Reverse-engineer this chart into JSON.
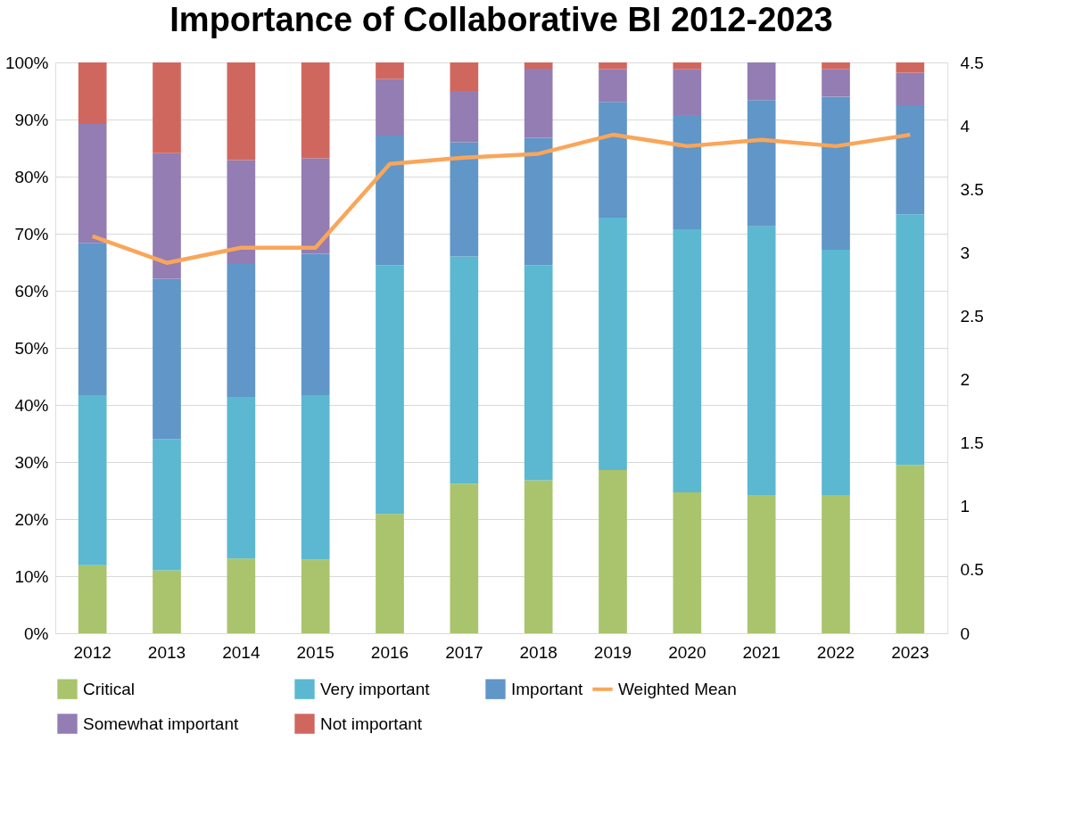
{
  "chart_data": {
    "type": "bar",
    "title": "Importance of Collaborative BI 2012-2023",
    "stacked": true,
    "categories": [
      "2012",
      "2013",
      "2014",
      "2015",
      "2016",
      "2017",
      "2018",
      "2019",
      "2020",
      "2021",
      "2022",
      "2023"
    ],
    "series": [
      {
        "name": "Critical",
        "color": "#a9c46c",
        "values": [
          11.9,
          11.0,
          13.1,
          12.9,
          20.9,
          26.2,
          26.8,
          28.6,
          24.7,
          24.2,
          24.1,
          29.5
        ]
      },
      {
        "name": "Very important",
        "color": "#5bb8d0",
        "values": [
          29.8,
          23.0,
          28.3,
          28.8,
          43.6,
          39.8,
          37.7,
          44.2,
          46.1,
          47.1,
          43.1,
          43.9
        ]
      },
      {
        "name": "Important",
        "color": "#6096c8",
        "values": [
          26.7,
          28.1,
          23.3,
          24.8,
          22.7,
          20.0,
          22.3,
          20.3,
          20.0,
          22.1,
          26.8,
          19.1
        ]
      },
      {
        "name": "Somewhat important",
        "color": "#937db3",
        "values": [
          20.8,
          22.0,
          18.2,
          16.7,
          9.9,
          9.0,
          12.1,
          5.7,
          8.0,
          6.6,
          4.8,
          5.7
        ]
      },
      {
        "name": "Not important",
        "color": "#d0675f",
        "values": [
          10.8,
          15.9,
          17.1,
          16.8,
          2.9,
          5.0,
          1.1,
          1.2,
          1.2,
          0.0,
          1.2,
          1.8
        ]
      },
      {
        "name": "Weighted Mean",
        "type": "line",
        "axis": "y2",
        "color": "#f9a65a",
        "values": [
          3.13,
          2.92,
          3.04,
          3.04,
          3.7,
          3.75,
          3.78,
          3.93,
          3.84,
          3.89,
          3.84,
          3.93
        ]
      }
    ],
    "ylim": [
      0,
      100
    ],
    "yticks": [
      {
        "value": 0,
        "label": "0%"
      },
      {
        "value": 10,
        "label": "10%"
      },
      {
        "value": 20,
        "label": "20%"
      },
      {
        "value": 30,
        "label": "30%"
      },
      {
        "value": 40,
        "label": "40%"
      },
      {
        "value": 50,
        "label": "50%"
      },
      {
        "value": 60,
        "label": "60%"
      },
      {
        "value": 70,
        "label": "70%"
      },
      {
        "value": 80,
        "label": "80%"
      },
      {
        "value": 90,
        "label": "90%"
      },
      {
        "value": 100,
        "label": "100%"
      }
    ],
    "y2lim": [
      0,
      4.5
    ],
    "y2ticks": [
      0,
      0.5,
      1,
      1.5,
      2,
      2.5,
      3,
      3.5,
      4,
      4.5
    ],
    "grid": "y",
    "legend": "bottom",
    "marker": "none",
    "line_style": "solid"
  }
}
